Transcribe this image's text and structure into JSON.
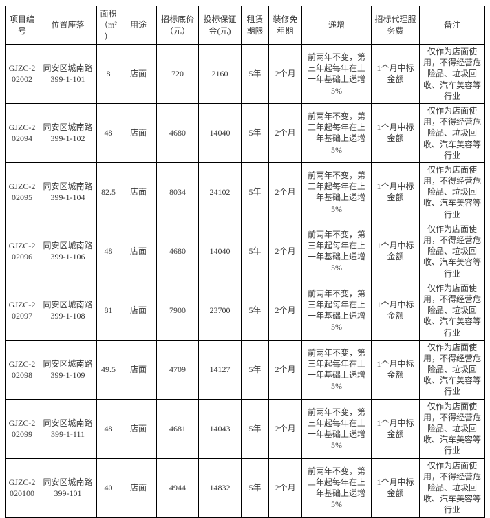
{
  "colors": {
    "background": "#ffffff",
    "table_border": "#000000",
    "text": "#3c3c3c"
  },
  "table": {
    "columns": [
      {
        "key": "project_id",
        "label": "项目编号"
      },
      {
        "key": "location",
        "label": "位置座落"
      },
      {
        "key": "area",
        "label": "面积（m²）"
      },
      {
        "key": "usage",
        "label": "用途"
      },
      {
        "key": "floor_price",
        "label": "招标底价（元）"
      },
      {
        "key": "deposit",
        "label": "投标保证金(元)"
      },
      {
        "key": "lease_term",
        "label": "租赁期限"
      },
      {
        "key": "rent_free",
        "label": "装修免租期"
      },
      {
        "key": "increment",
        "label": "递增"
      },
      {
        "key": "agency_fee",
        "label": "招标代理服务费"
      },
      {
        "key": "remarks",
        "label": "备注"
      }
    ],
    "rows": [
      {
        "project_id": "GJZC-202002",
        "location": "同安区城南路399-1-101",
        "area": "8",
        "usage": "店面",
        "floor_price": "720",
        "deposit": "2160",
        "lease_term": "5年",
        "rent_free": "2个月",
        "increment": "前两年不变，第三年起每年在上一年基础上递增 5%",
        "agency_fee": "1个月中标金额",
        "remarks": "仅作为店面使用，不得经营危险品、垃圾回收、汽车美容等行业"
      },
      {
        "project_id": "GJZC-202094",
        "location": "同安区城南路399-1-102",
        "area": "48",
        "usage": "店面",
        "floor_price": "4680",
        "deposit": "14040",
        "lease_term": "5年",
        "rent_free": "2个月",
        "increment": "前两年不变，第三年起每年在上一年基础上递增 5%",
        "agency_fee": "1个月中标金额",
        "remarks": "仅作为店面使用，不得经营危险品、垃圾回收、汽车美容等行业"
      },
      {
        "project_id": "GJZC-202095",
        "location": "同安区城南路399-1-104",
        "area": "82.5",
        "usage": "店面",
        "floor_price": "8034",
        "deposit": "24102",
        "lease_term": "5年",
        "rent_free": "2个月",
        "increment": "前两年不变，第三年起每年在上一年基础上递增 5%",
        "agency_fee": "1个月中标金额",
        "remarks": "仅作为店面使用，不得经营危险品、垃圾回收、汽车美容等行业"
      },
      {
        "project_id": "GJZC-202096",
        "location": "同安区城南路399-1-106",
        "area": "48",
        "usage": "店面",
        "floor_price": "4680",
        "deposit": "14040",
        "lease_term": "5年",
        "rent_free": "2个月",
        "increment": "前两年不变，第三年起每年在上一年基础上递增 5%",
        "agency_fee": "1个月中标金额",
        "remarks": "仅作为店面使用，不得经营危险品、垃圾回收、汽车美容等行业"
      },
      {
        "project_id": "GJZC-202097",
        "location": "同安区城南路399-1-108",
        "area": "81",
        "usage": "店面",
        "floor_price": "7900",
        "deposit": "23700",
        "lease_term": "5年",
        "rent_free": "2个月",
        "increment": "前两年不变，第三年起每年在上一年基础上递增 5%",
        "agency_fee": "1个月中标金额",
        "remarks": "仅作为店面使用，不得经营危险品、垃圾回收、汽车美容等行业"
      },
      {
        "project_id": "GJZC-202098",
        "location": "同安区城南路399-1-109",
        "area": "49.5",
        "usage": "店面",
        "floor_price": "4709",
        "deposit": "14127",
        "lease_term": "5年",
        "rent_free": "2个月",
        "increment": "前两年不变，第三年起每年在上一年基础上递增 5%",
        "agency_fee": "1个月中标金额",
        "remarks": "仅作为店面使用，不得经营危险品、垃圾回收、汽车美容等行业"
      },
      {
        "project_id": "GJZC-202099",
        "location": "同安区城南路399-1-111",
        "area": "48",
        "usage": "店面",
        "floor_price": "4681",
        "deposit": "14043",
        "lease_term": "5年",
        "rent_free": "2个月",
        "increment": "前两年不变，第三年起每年在上一年基础上递增 5%",
        "agency_fee": "1个月中标金额",
        "remarks": "仅作为店面使用，不得经营危险品、垃圾回收、汽车美容等行业"
      },
      {
        "project_id": "GJZC-2020100",
        "location": "同安区城南路399-101",
        "area": "40",
        "usage": "店面",
        "floor_price": "4944",
        "deposit": "14832",
        "lease_term": "5年",
        "rent_free": "2个月",
        "increment": "前两年不变，第三年起每年在上一年基础上递增 5%",
        "agency_fee": "1个月中标金额",
        "remarks": "仅作为店面使用，不得经营危险品、垃圾回收、汽车美容等行业"
      }
    ]
  }
}
